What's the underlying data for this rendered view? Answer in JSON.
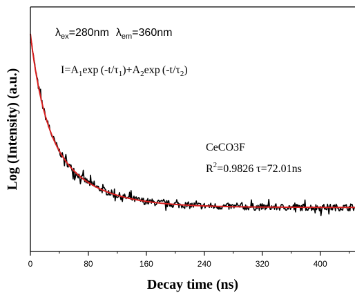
{
  "chart_data": {
    "type": "line",
    "xlabel": "Decay time (ns)",
    "ylabel": "Log (Intensity) (a.u.)",
    "xlim": [
      0,
      448
    ],
    "ylim": [
      0,
      1
    ],
    "x_ticks": [
      "0",
      "80",
      "160",
      "240",
      "320",
      "400"
    ],
    "x_tick_values": [
      0,
      80,
      160,
      240,
      320,
      400
    ],
    "y_ticks_labeled": false,
    "grid": false,
    "annotations": {
      "excitation_label": "λ",
      "excitation_sub": "ex",
      "excitation_value": "=280nm",
      "emission_label": "λ",
      "emission_sub": "em",
      "emission_value": "=360nm",
      "formula_parts": [
        "I=A",
        "1",
        "exp (-t/τ",
        "1",
        ")+A",
        "2",
        "exp (-t/τ",
        "2",
        ")"
      ],
      "sample_name": "CeCO3F",
      "fit_r": "R",
      "fit_r_sup": "2",
      "fit_values": "=0.9826  τ=72.01ns"
    },
    "series": [
      {
        "style": "noisy-measured",
        "color": "#000000",
        "model": {
          "y0": 0.18,
          "A1": 0.39,
          "tau1": 58,
          "A2": 0.32,
          "tau2": 18,
          "noise_amplitude": 0.014
        }
      },
      {
        "style": "fit",
        "color": "#d92020",
        "model": {
          "y0": 0.18,
          "A1": 0.39,
          "tau1": 58,
          "A2": 0.32,
          "tau2": 18
        }
      }
    ]
  }
}
